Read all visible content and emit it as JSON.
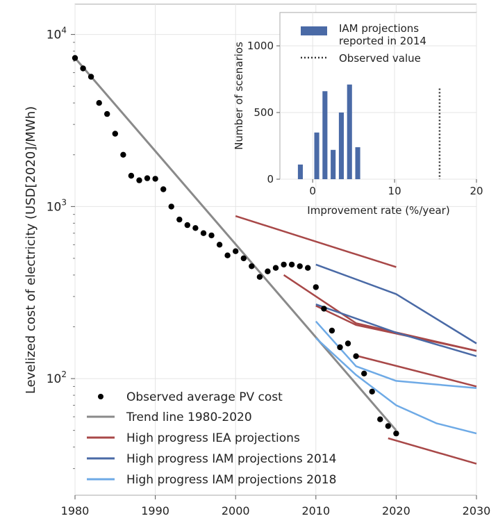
{
  "chart_data": [
    {
      "type": "line",
      "ylabel": "Levelized cost of electricity (USD[2020]/MWh)",
      "ylog": true,
      "xlim": [
        1980,
        2030
      ],
      "ylim": [
        21,
        15000
      ],
      "xticks": [
        1980,
        1990,
        2000,
        2010,
        2020,
        2030
      ],
      "yticks": [
        {
          "value": 100,
          "base": "10",
          "exp": "2"
        },
        {
          "value": 1000,
          "base": "10",
          "exp": "3"
        },
        {
          "value": 10000,
          "base": "10",
          "exp": "4"
        }
      ],
      "grid": true,
      "legend_position": "bottom-left",
      "legend": [
        {
          "label": "Observed average PV cost",
          "kind": "marker",
          "color": "#000000"
        },
        {
          "label": "Trend line 1980-2020",
          "kind": "line",
          "color": "#8a8a8a"
        },
        {
          "label": "High progress IEA projections",
          "kind": "line",
          "color": "#a84848"
        },
        {
          "label": "High progress IAM projections 2014",
          "kind": "line",
          "color": "#4a6aa6"
        },
        {
          "label": "High progress IAM projections 2018",
          "kind": "line",
          "color": "#6eaae6"
        }
      ],
      "observed": {
        "color": "#000000",
        "x": [
          1980,
          1981,
          1982,
          1983,
          1984,
          1985,
          1986,
          1987,
          1988,
          1989,
          1990,
          1991,
          1992,
          1993,
          1994,
          1995,
          1996,
          1997,
          1998,
          1999,
          2000,
          2001,
          2002,
          2003,
          2004,
          2005,
          2006,
          2007,
          2008,
          2009,
          2010,
          2011,
          2012,
          2013,
          2014,
          2015,
          2016,
          2017,
          2018,
          2019,
          2020
        ],
        "y": [
          7300,
          6350,
          5680,
          4000,
          3450,
          2650,
          2000,
          1510,
          1420,
          1460,
          1450,
          1260,
          1000,
          840,
          780,
          750,
          700,
          680,
          600,
          520,
          550,
          500,
          450,
          390,
          420,
          440,
          460,
          460,
          450,
          440,
          340,
          255,
          190,
          152,
          160,
          135,
          107,
          84,
          58,
          53,
          48
        ]
      },
      "trend": {
        "color": "#8a8a8a",
        "x": [
          1980,
          2020
        ],
        "y": [
          7300,
          50
        ]
      },
      "iea_projections": {
        "color": "#a84848",
        "series": [
          {
            "x": [
              2000,
              2020
            ],
            "y": [
              880,
              445
            ]
          },
          {
            "x": [
              2006,
              2015,
              2030
            ],
            "y": [
              400,
              210,
              145
            ]
          },
          {
            "x": [
              2010,
              2015,
              2030
            ],
            "y": [
              265,
              205,
              145
            ]
          },
          {
            "x": [
              2015,
              2030
            ],
            "y": [
              136,
              90
            ]
          },
          {
            "x": [
              2019,
              2030
            ],
            "y": [
              45,
              32
            ]
          }
        ]
      },
      "iam_2014": {
        "color": "#4a6aa6",
        "series": [
          {
            "x": [
              2010,
              2020,
              2030
            ],
            "y": [
              460,
              310,
              160
            ]
          },
          {
            "x": [
              2010,
              2020,
              2030
            ],
            "y": [
              270,
              185,
              135
            ]
          }
        ]
      },
      "iam_2018": {
        "color": "#6eaae6",
        "series": [
          {
            "x": [
              2010,
              2015,
              2020,
              2030
            ],
            "y": [
              215,
              118,
              97,
              88
            ]
          },
          {
            "x": [
              2010,
              2015,
              2020,
              2025,
              2030
            ],
            "y": [
              172,
              105,
              70,
              55,
              48
            ]
          }
        ]
      }
    },
    {
      "type": "bar",
      "xlabel": "Improvement rate (%/year)",
      "ylabel": "Number of scenarios",
      "xlim": [
        -4,
        20
      ],
      "ylim": [
        0,
        1250
      ],
      "xticks": [
        0,
        10,
        20
      ],
      "yticks": [
        0,
        500,
        1000
      ],
      "grid": true,
      "legend_position": "top-right",
      "legend": [
        {
          "label_line1": "IAM projections",
          "label_line2": "reported in 2014",
          "kind": "bar",
          "color": "#4a6aa6"
        },
        {
          "label": "Observed value",
          "kind": "dotted",
          "color": "#333333"
        }
      ],
      "bar_color": "#4a6aa6",
      "bin_width": 0.6,
      "bins": [
        {
          "x": -1.5,
          "value": 110
        },
        {
          "x": 0.5,
          "value": 350
        },
        {
          "x": 1.5,
          "value": 660
        },
        {
          "x": 2.5,
          "value": 220
        },
        {
          "x": 3.5,
          "value": 500
        },
        {
          "x": 4.5,
          "value": 710
        },
        {
          "x": 5.5,
          "value": 240
        }
      ],
      "observed_value": 15.5
    }
  ]
}
